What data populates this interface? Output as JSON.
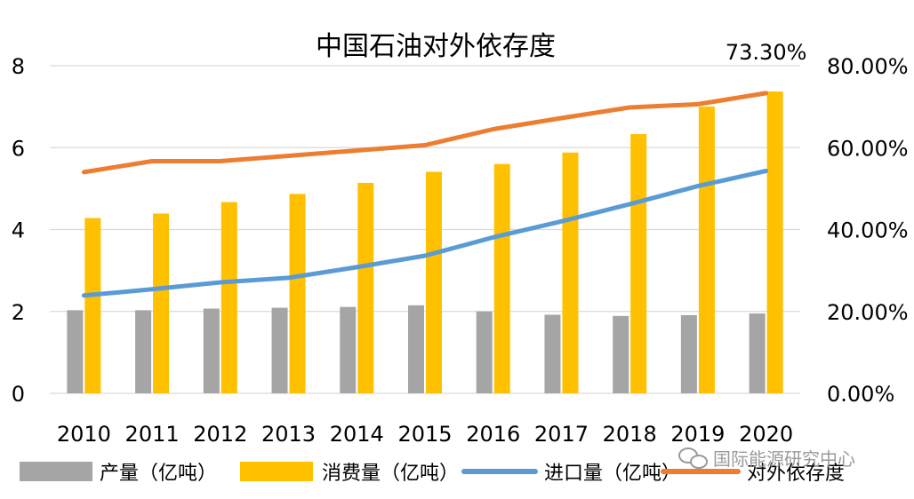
{
  "chart_data": {
    "type": "bar",
    "title": "中国石油对外依存度",
    "categories": [
      "2010",
      "2011",
      "2012",
      "2013",
      "2014",
      "2015",
      "2016",
      "2017",
      "2018",
      "2019",
      "2020"
    ],
    "ylim": [
      0,
      8
    ],
    "y_ticks": [
      "0",
      "2",
      "4",
      "6",
      "8"
    ],
    "y2lim": [
      0,
      0.8
    ],
    "y2_ticks": [
      "0.00%",
      "20.00%",
      "40.00%",
      "60.00%",
      "80.00%"
    ],
    "grid": true,
    "legend_position": "bottom",
    "series": [
      {
        "name": "产量（亿吨）",
        "type": "bar",
        "axis": "left",
        "color": "#A5A5A5",
        "values": [
          2.03,
          2.03,
          2.07,
          2.09,
          2.11,
          2.15,
          2.0,
          1.92,
          1.89,
          1.91,
          1.95
        ]
      },
      {
        "name": "消费量（亿吨）",
        "type": "bar",
        "axis": "left",
        "color": "#FFC000",
        "values": [
          4.28,
          4.39,
          4.67,
          4.87,
          5.14,
          5.41,
          5.6,
          5.88,
          6.33,
          7.0,
          7.37
        ]
      },
      {
        "name": "进口量（亿吨）",
        "type": "line",
        "axis": "left",
        "color": "#5B9BD5",
        "values": [
          2.39,
          2.54,
          2.71,
          2.82,
          3.08,
          3.36,
          3.81,
          4.2,
          4.62,
          5.06,
          5.43
        ]
      },
      {
        "name": "对外依存度",
        "type": "line",
        "axis": "right",
        "color": "#ED7D31",
        "values": [
          0.54,
          0.567,
          0.567,
          0.58,
          0.593,
          0.606,
          0.645,
          0.672,
          0.698,
          0.706,
          0.733
        ]
      }
    ],
    "annotations": [
      {
        "text": "73.30%",
        "series": "对外依存度",
        "index": 10
      }
    ]
  },
  "watermark": {
    "text": "国际能源研究中心",
    "icon": "wechat-icon"
  }
}
